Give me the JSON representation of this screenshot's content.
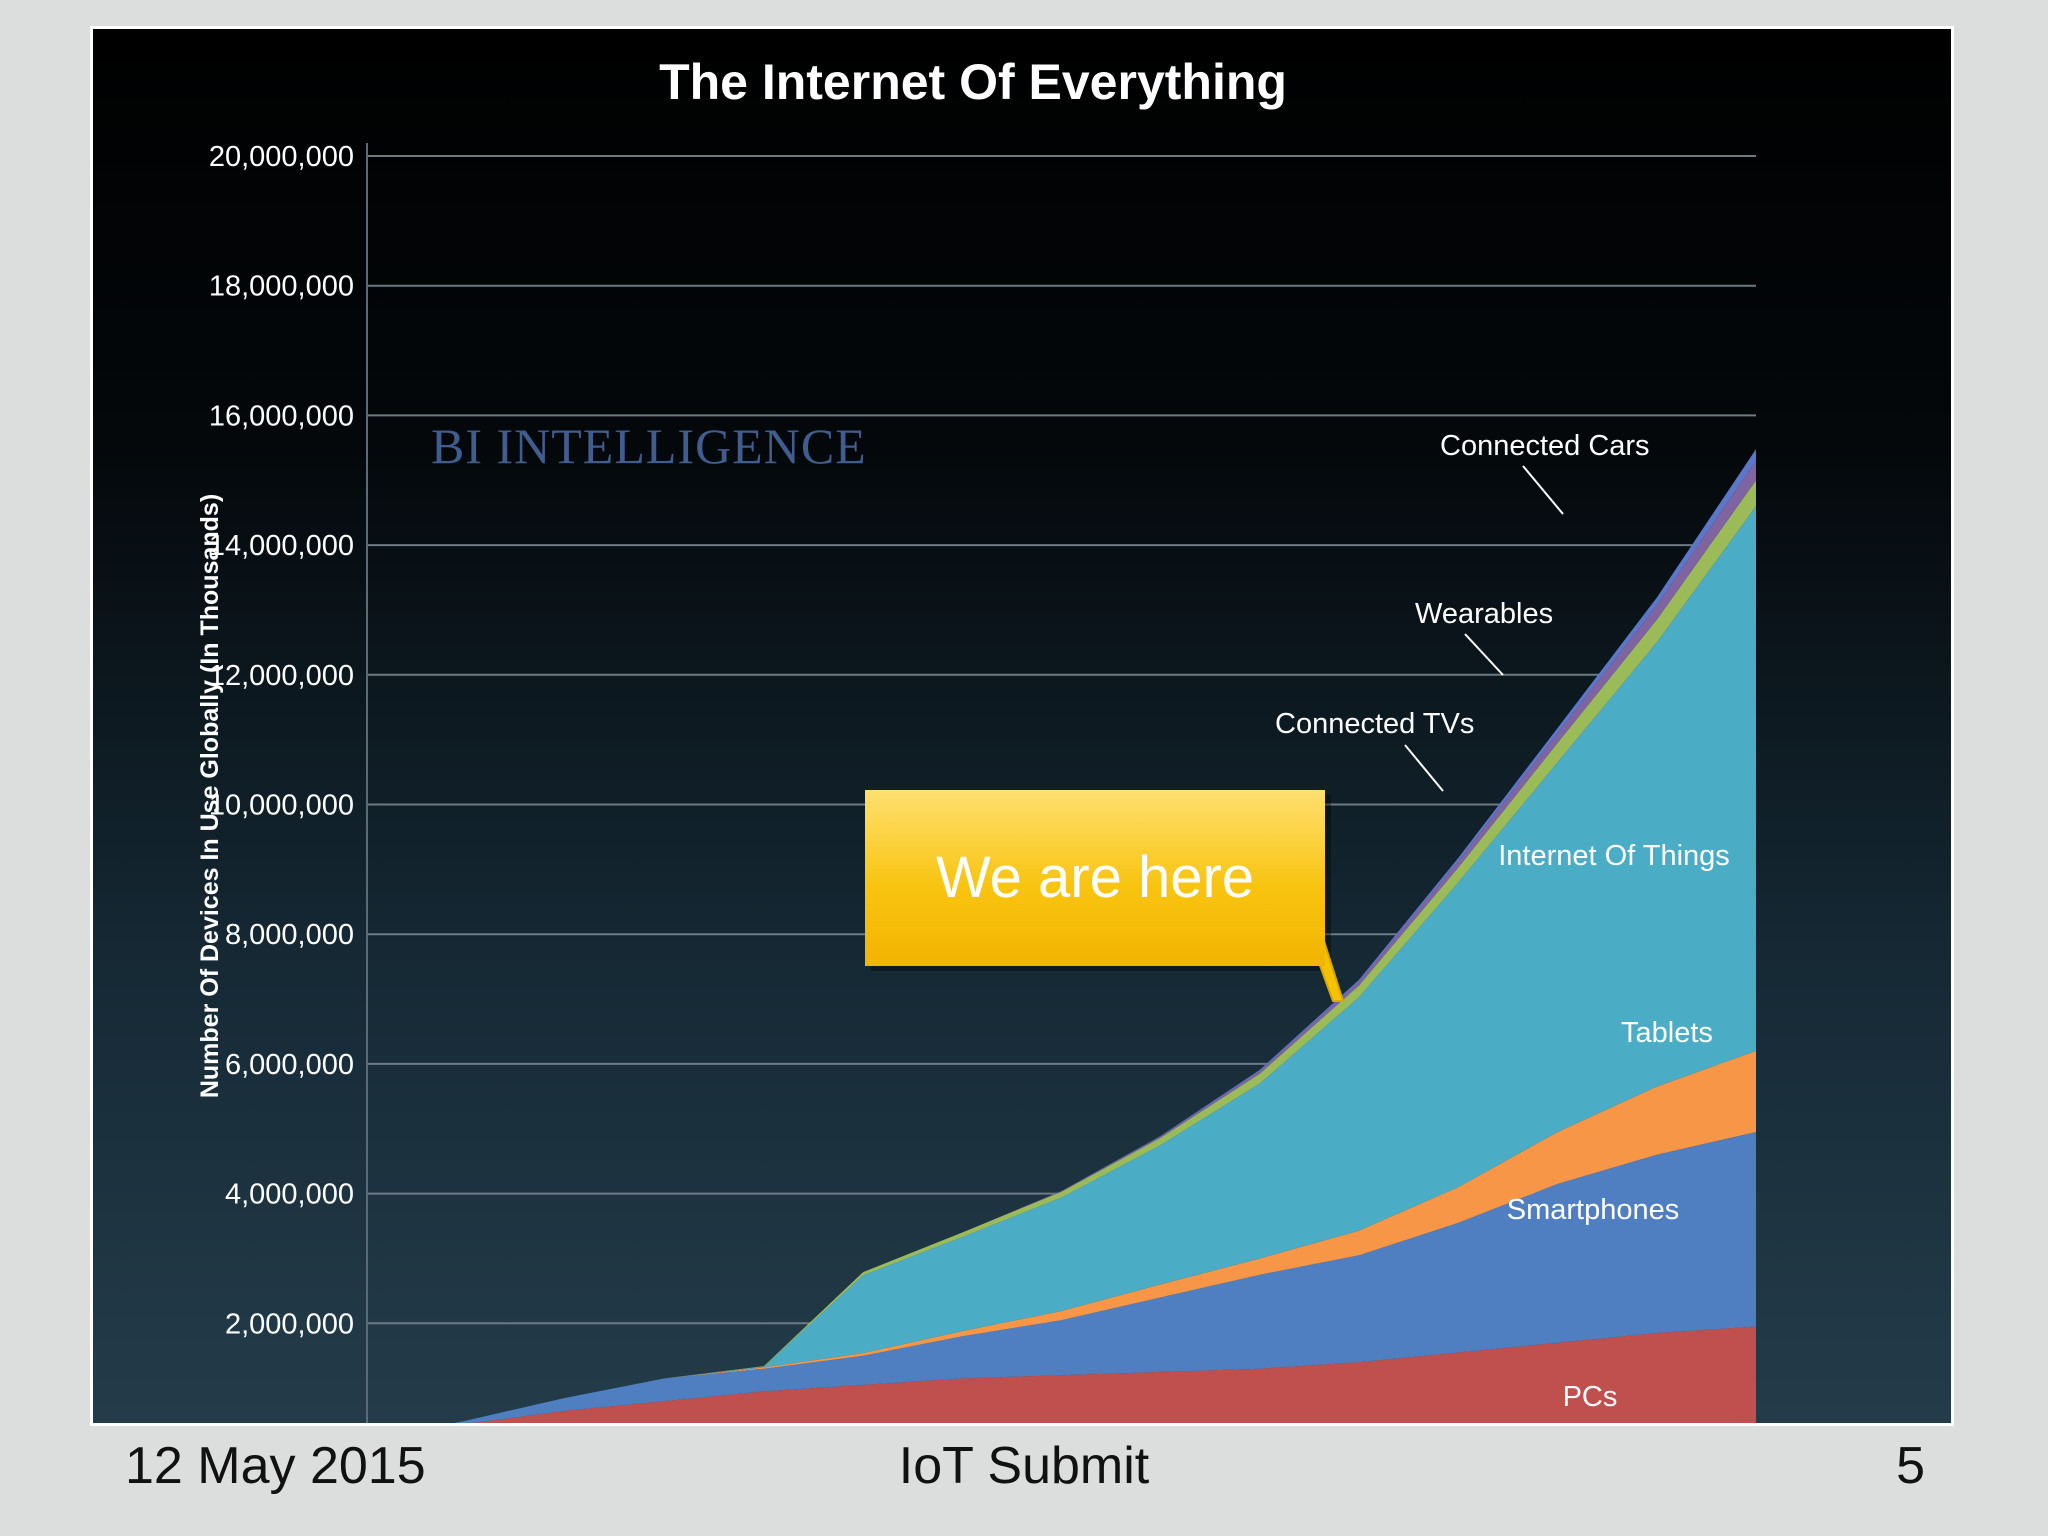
{
  "footer": {
    "date": "12 May 2015",
    "event": "IoT Submit",
    "page_number": "5"
  },
  "brand": {
    "watermark": "BI INTELLIGENCE"
  },
  "callout": {
    "text": "We are here"
  },
  "colors": {
    "pcs": "#c0504d",
    "smartphones": "#4f7fc1",
    "tablets": "#f79646",
    "internet_of_things": "#4bacc6",
    "connected_tvs": "#9bbb59",
    "wearables": "#8064a2",
    "connected_cars": "#5b77c9",
    "callout": "#f6c200"
  },
  "chart_data": {
    "type": "area",
    "stacked": true,
    "title": "The Internet Of Everything",
    "ylabel": "Number Of Devices In Use Globally (In Thousands)",
    "xlabel": "",
    "ylim": [
      0,
      20000000
    ],
    "ytick_values": [
      2000000,
      4000000,
      6000000,
      8000000,
      10000000,
      12000000,
      14000000,
      16000000,
      18000000,
      20000000
    ],
    "ytick_labels": [
      "2,000,000",
      "4,000,000",
      "6,000,000",
      "8,000,000",
      "10,000,000",
      "12,000,000",
      "14,000,000",
      "16,000,000",
      "18,000,000",
      "20,000,000"
    ],
    "grid": true,
    "x": [
      0,
      1,
      2,
      3,
      4,
      5,
      6,
      7,
      8,
      9,
      10,
      11,
      12,
      13,
      14
    ],
    "series": [
      {
        "name": "PCs",
        "color_key": "pcs",
        "values": [
          200000,
          450000,
          650000,
          800000,
          950000,
          1050000,
          1150000,
          1200000,
          1250000,
          1300000,
          1400000,
          1550000,
          1700000,
          1850000,
          1950000
        ]
      },
      {
        "name": "Smartphones",
        "color_key": "smartphones",
        "values": [
          0,
          50000,
          200000,
          350000,
          350000,
          450000,
          650000,
          850000,
          1150000,
          1450000,
          1650000,
          2000000,
          2450000,
          2750000,
          3000000
        ]
      },
      {
        "name": "Tablets",
        "color_key": "tablets",
        "values": [
          0,
          0,
          0,
          0,
          20000,
          40000,
          80000,
          140000,
          200000,
          250000,
          380000,
          550000,
          800000,
          1050000,
          1250000
        ]
      },
      {
        "name": "Internet Of Things",
        "color_key": "internet_of_things",
        "values": [
          0,
          0,
          0,
          0,
          10000,
          1200000,
          1450000,
          1750000,
          2150000,
          2700000,
          3600000,
          4700000,
          5700000,
          6850000,
          8400000
        ]
      },
      {
        "name": "Connected TVs",
        "color_key": "connected_tvs",
        "values": [
          0,
          0,
          0,
          0,
          10000,
          50000,
          70000,
          90000,
          110000,
          150000,
          180000,
          230000,
          300000,
          350000,
          400000
        ]
      },
      {
        "name": "Wearables",
        "color_key": "wearables",
        "values": [
          0,
          0,
          0,
          0,
          0,
          0,
          0,
          10000,
          20000,
          40000,
          60000,
          100000,
          150000,
          220000,
          300000
        ]
      },
      {
        "name": "Connected Cars",
        "color_key": "connected_cars",
        "values": [
          0,
          0,
          0,
          0,
          0,
          0,
          0,
          0,
          10000,
          20000,
          30000,
          50000,
          80000,
          120000,
          180000
        ]
      }
    ]
  }
}
